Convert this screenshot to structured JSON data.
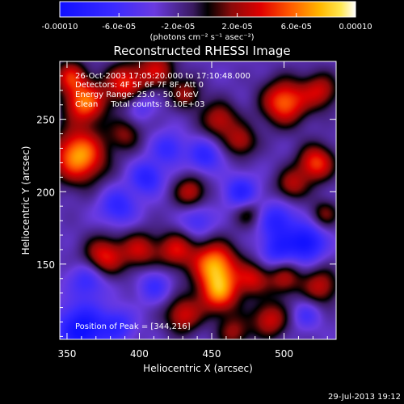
{
  "chart_data": {
    "type": "heatmap",
    "title": "Reconstructed RHESSI Image",
    "xlabel": "Heliocentric X (arcsec)",
    "ylabel": "Heliocentric Y (arcsec)",
    "xlim": [
      345,
      536
    ],
    "ylim": [
      98,
      290
    ],
    "x_ticks": [
      350,
      400,
      450,
      500
    ],
    "y_ticks": [
      150,
      200,
      250
    ],
    "colorbar": {
      "min": -0.0001,
      "max": 0.0001,
      "colormap": "blue-purple-black-red-orange-yellow-white",
      "tick_values": [
        -0.0001,
        -6e-05,
        -2e-05,
        2e-05,
        6e-05,
        0.0001
      ],
      "tick_labels": [
        "-0.00010",
        "-6.0e-05",
        "-2.0e-05",
        "2.0e-05",
        "6.0e-05",
        "0.00010"
      ],
      "units_label": "(photons cm⁻² s⁻¹ asec⁻²)"
    },
    "annotations": {
      "time_range": "26-Oct-2003 17:05:20.000 to 17:10:48.000",
      "detectors": "Detectors: 4F 5F 6F 7F 8F, Att 0",
      "energy": "Energy Range: 25.0 - 50.0 keV",
      "method_counts": "Clean     Total counts: 8.10E+03",
      "peak": "Position of Peak = [344,216]"
    },
    "blobs": [
      {
        "x": 358,
        "y": 225,
        "amp": 1.0,
        "s": 13
      },
      {
        "x": 362,
        "y": 262,
        "amp": 0.85,
        "s": 10
      },
      {
        "x": 352,
        "y": 280,
        "amp": 0.6,
        "s": 8
      },
      {
        "x": 390,
        "y": 275,
        "amp": 0.7,
        "s": 10
      },
      {
        "x": 412,
        "y": 285,
        "amp": 0.55,
        "s": 9
      },
      {
        "x": 432,
        "y": 268,
        "amp": 0.45,
        "s": 8
      },
      {
        "x": 455,
        "y": 250,
        "amp": 0.55,
        "s": 9
      },
      {
        "x": 470,
        "y": 235,
        "amp": 0.5,
        "s": 8
      },
      {
        "x": 500,
        "y": 262,
        "amp": 0.85,
        "s": 11
      },
      {
        "x": 525,
        "y": 270,
        "amp": 0.55,
        "s": 9
      },
      {
        "x": 522,
        "y": 220,
        "amp": 0.75,
        "s": 9
      },
      {
        "x": 505,
        "y": 205,
        "amp": 0.5,
        "s": 8
      },
      {
        "x": 435,
        "y": 200,
        "amp": 0.55,
        "s": 8
      },
      {
        "x": 390,
        "y": 240,
        "amp": 0.4,
        "s": 8
      },
      {
        "x": 375,
        "y": 155,
        "amp": 0.7,
        "s": 10
      },
      {
        "x": 400,
        "y": 160,
        "amp": 0.55,
        "s": 9
      },
      {
        "x": 425,
        "y": 160,
        "amp": 0.6,
        "s": 9
      },
      {
        "x": 452,
        "y": 150,
        "amp": 0.95,
        "s": 11
      },
      {
        "x": 455,
        "y": 130,
        "amp": 0.8,
        "s": 10
      },
      {
        "x": 478,
        "y": 140,
        "amp": 0.55,
        "s": 8
      },
      {
        "x": 430,
        "y": 115,
        "amp": 0.6,
        "s": 9
      },
      {
        "x": 465,
        "y": 103,
        "amp": 0.45,
        "s": 8
      },
      {
        "x": 490,
        "y": 112,
        "amp": 0.6,
        "s": 9
      },
      {
        "x": 500,
        "y": 140,
        "amp": 0.5,
        "s": 8
      },
      {
        "x": 525,
        "y": 135,
        "amp": 0.55,
        "s": 9
      },
      {
        "x": 528,
        "y": 185,
        "amp": 0.4,
        "s": 7
      },
      {
        "x": 475,
        "y": 185,
        "amp": 0.35,
        "s": 7
      },
      {
        "x": 360,
        "y": 105,
        "amp": -0.75,
        "s": 12
      },
      {
        "x": 385,
        "y": 108,
        "amp": -0.4,
        "s": 8
      },
      {
        "x": 365,
        "y": 140,
        "amp": -0.45,
        "s": 9
      },
      {
        "x": 385,
        "y": 190,
        "amp": -0.45,
        "s": 9
      },
      {
        "x": 405,
        "y": 210,
        "amp": -0.5,
        "s": 8
      },
      {
        "x": 420,
        "y": 230,
        "amp": -0.4,
        "s": 8
      },
      {
        "x": 445,
        "y": 225,
        "amp": -0.45,
        "s": 8
      },
      {
        "x": 470,
        "y": 200,
        "amp": -0.5,
        "s": 8
      },
      {
        "x": 495,
        "y": 180,
        "amp": -0.5,
        "s": 9
      },
      {
        "x": 515,
        "y": 165,
        "amp": -0.7,
        "s": 9
      },
      {
        "x": 495,
        "y": 160,
        "amp": -0.45,
        "s": 8
      },
      {
        "x": 440,
        "y": 180,
        "amp": -0.35,
        "s": 8
      },
      {
        "x": 410,
        "y": 135,
        "amp": -0.35,
        "s": 8
      },
      {
        "x": 515,
        "y": 115,
        "amp": -0.3,
        "s": 7
      },
      {
        "x": 400,
        "y": 260,
        "amp": -0.3,
        "s": 7
      }
    ]
  },
  "footer": {
    "date_stamp": "29-Jul-2013 19:12"
  }
}
